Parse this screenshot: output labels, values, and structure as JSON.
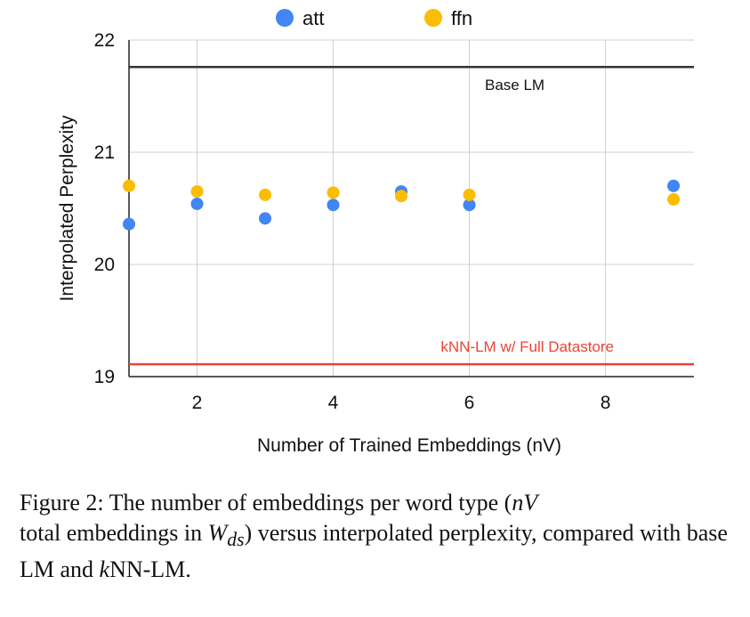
{
  "chart_data": {
    "type": "scatter",
    "xlabel": "Number of Trained Embeddings (nV)",
    "ylabel": "Interpolated Perplexity",
    "xlim": [
      1,
      9.3
    ],
    "ylim": [
      19,
      22
    ],
    "x_ticks": [
      2,
      4,
      6,
      8
    ],
    "y_ticks": [
      19,
      20,
      21,
      22
    ],
    "grid": true,
    "legend_position": "top-center",
    "series": [
      {
        "name": "att",
        "color": "#4285F4",
        "x": [
          1,
          2,
          3,
          4,
          5,
          6,
          9
        ],
        "y": [
          20.36,
          20.54,
          20.41,
          20.53,
          20.65,
          20.53,
          20.7
        ]
      },
      {
        "name": "ffn",
        "color": "#FBBC04",
        "x": [
          1,
          2,
          3,
          4,
          5,
          6,
          9
        ],
        "y": [
          20.7,
          20.65,
          20.62,
          20.64,
          20.61,
          20.62,
          20.58
        ]
      }
    ],
    "reference_lines": [
      {
        "label": "Base LM",
        "y": 21.76,
        "color": "#333333"
      },
      {
        "label": "kNN-LM w/ Full Datastore",
        "y": 19.11,
        "color": "#EA4335"
      }
    ]
  },
  "caption": {
    "lead": "Figure 2: The number of embeddings per word type (",
    "math_nv": "nV",
    "mid1": "total embeddings in ",
    "math_w": "W",
    "math_sub": "ds",
    "mid2": ") versus interpolated perplexity, compared with base LM and ",
    "math_k": "k",
    "tail": "NN-LM."
  }
}
